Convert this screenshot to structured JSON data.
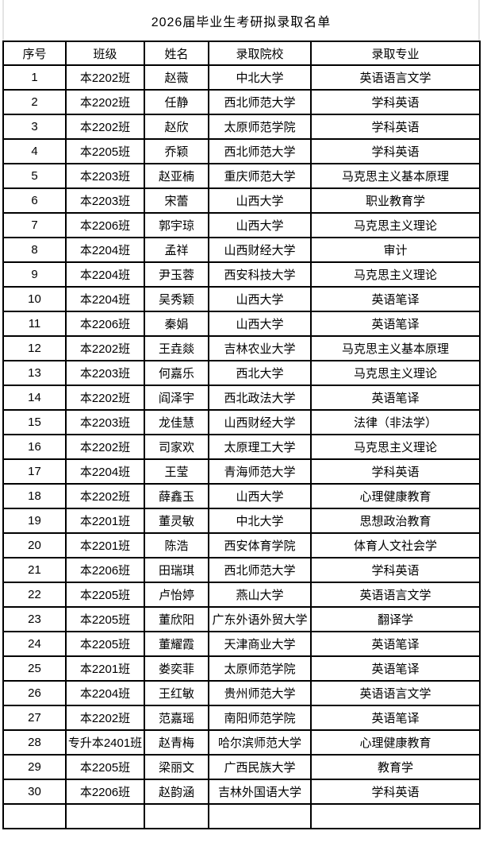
{
  "title": "2026届毕业生考研拟录取名单",
  "colors": {
    "table_border": "#000000",
    "text": "#000000",
    "gridline": "#e4e4e4",
    "background": "#ffffff"
  },
  "table": {
    "headers": [
      "序号",
      "班级",
      "姓名",
      "录取院校",
      "录取专业"
    ],
    "rows": [
      [
        "1",
        "本2202班",
        "赵薇",
        "中北大学",
        "英语语言文学"
      ],
      [
        "2",
        "本2202班",
        "任静",
        "西北师范大学",
        "学科英语"
      ],
      [
        "3",
        "本2202班",
        "赵欣",
        "太原师范学院",
        "学科英语"
      ],
      [
        "4",
        "本2205班",
        "乔颖",
        "西北师范大学",
        "学科英语"
      ],
      [
        "5",
        "本2203班",
        "赵亚楠",
        "重庆师范大学",
        "马克思主义基本原理"
      ],
      [
        "6",
        "本2203班",
        "宋蕾",
        "山西大学",
        "职业教育学"
      ],
      [
        "7",
        "本2206班",
        "郭宇琼",
        "山西大学",
        "马克思主义理论"
      ],
      [
        "8",
        "本2204班",
        "孟祥",
        "山西财经大学",
        "审计"
      ],
      [
        "9",
        "本2204班",
        "尹玉蓉",
        "西安科技大学",
        "马克思主义理论"
      ],
      [
        "10",
        "本2204班",
        "吴秀颖",
        "山西大学",
        "英语笔译"
      ],
      [
        "11",
        "本2206班",
        "秦娟",
        "山西大学",
        "英语笔译"
      ],
      [
        "12",
        "本2202班",
        "王垚燚",
        "吉林农业大学",
        "马克思主义基本原理"
      ],
      [
        "13",
        "本2203班",
        "何嘉乐",
        "西北大学",
        "马克思主义理论"
      ],
      [
        "14",
        "本2202班",
        "阎泽宇",
        "西北政法大学",
        "英语笔译"
      ],
      [
        "15",
        "本2203班",
        "龙佳慧",
        "山西财经大学",
        "法律（非法学）"
      ],
      [
        "16",
        "本2202班",
        "司家欢",
        "太原理工大学",
        "马克思主义理论"
      ],
      [
        "17",
        "本2204班",
        "王莹",
        "青海师范大学",
        "学科英语"
      ],
      [
        "18",
        "本2202班",
        "薛鑫玉",
        "山西大学",
        "心理健康教育"
      ],
      [
        "19",
        "本2201班",
        "董灵敏",
        "中北大学",
        "思想政治教育"
      ],
      [
        "20",
        "本2201班",
        "陈浩",
        "西安体育学院",
        "体育人文社会学"
      ],
      [
        "21",
        "本2206班",
        "田瑞琪",
        "西北师范大学",
        "学科英语"
      ],
      [
        "22",
        "本2205班",
        "卢怡婷",
        "燕山大学",
        "英语语言文学"
      ],
      [
        "23",
        "本2205班",
        "董欣阳",
        "广东外语外贸大学",
        "翻译学"
      ],
      [
        "24",
        "本2205班",
        "董耀霞",
        "天津商业大学",
        "英语笔译"
      ],
      [
        "25",
        "本2201班",
        "娄奕菲",
        "太原师范学院",
        "英语笔译"
      ],
      [
        "26",
        "本2204班",
        "王红敏",
        "贵州师范大学",
        "英语语言文学"
      ],
      [
        "27",
        "本2202班",
        "范嘉瑶",
        "南阳师范学院",
        "英语笔译"
      ],
      [
        "28",
        "专升本2401班",
        "赵青梅",
        "哈尔滨师范大学",
        "心理健康教育"
      ],
      [
        "29",
        "本2205班",
        "梁丽文",
        "广西民族大学",
        "教育学"
      ],
      [
        "30",
        "本2206班",
        "赵韵涵",
        "吉林外国语大学",
        "学科英语"
      ]
    ]
  }
}
